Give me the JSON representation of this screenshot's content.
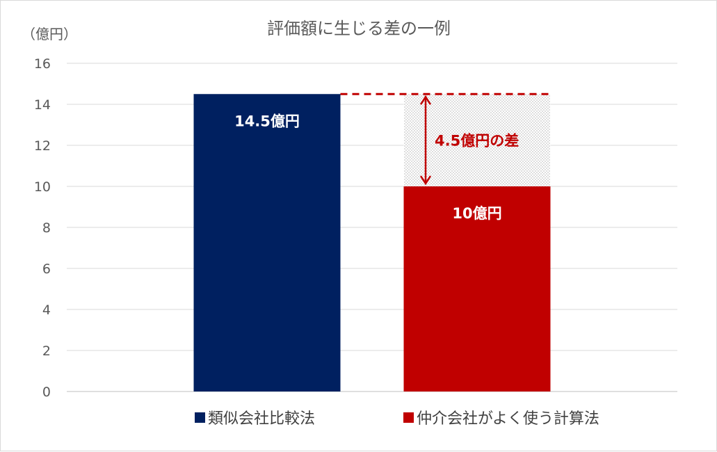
{
  "chart_data": {
    "type": "bar",
    "title": "評価額に生じる差の一例",
    "ylabel": "（億円）",
    "ylim": [
      0,
      16
    ],
    "yticks": [
      0,
      2,
      4,
      6,
      8,
      10,
      12,
      14,
      16
    ],
    "grid": true,
    "legend_position": "bottom",
    "series": [
      {
        "name": "類似会社比較法",
        "value": 14.5,
        "color": "#002060",
        "data_label": "14.5億円"
      },
      {
        "name": "仲介会社がよく使う計算法",
        "value": 10,
        "color": "#c00000",
        "data_label": "10億円"
      }
    ],
    "annotation": {
      "text": "4.5億円の差",
      "from": 10,
      "to": 14.5,
      "color": "#c00000"
    }
  }
}
